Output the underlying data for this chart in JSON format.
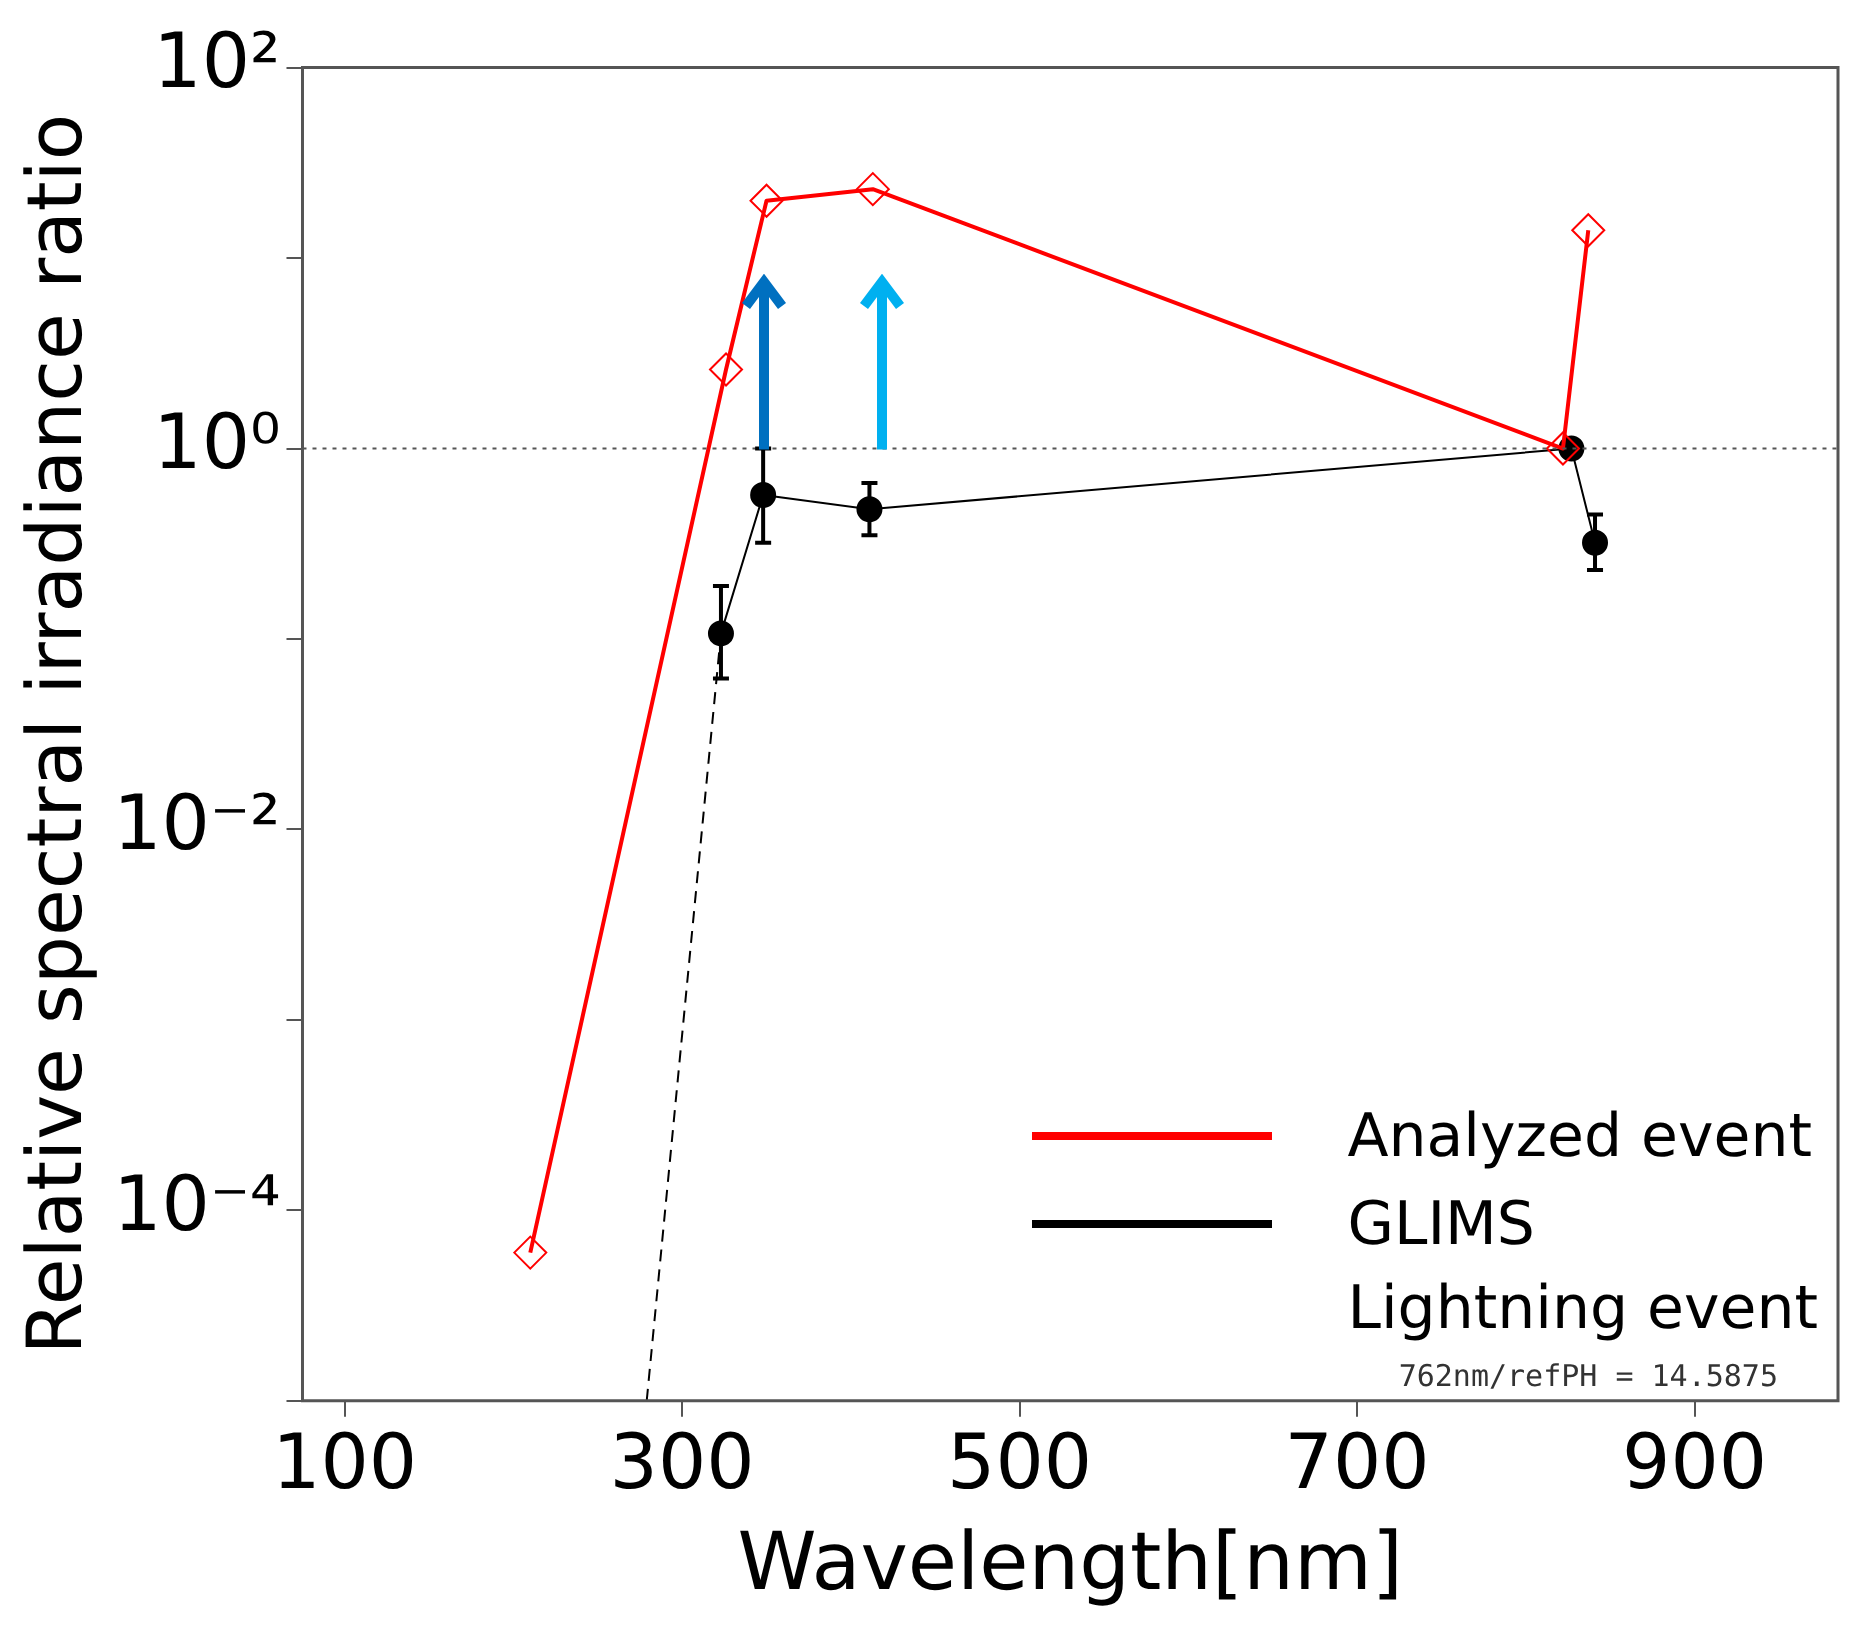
{
  "chart_data": {
    "type": "line",
    "xlabel": "Wavelength[nm]",
    "ylabel": "Relative spectral irradiance ratio",
    "log": "y",
    "xlim": [
      75,
      985
    ],
    "xticks": [
      100,
      300,
      500,
      700,
      900
    ],
    "ylim": [
      1e-05,
      100
    ],
    "yticks": [
      {
        "value": 1e-05,
        "label": null
      },
      {
        "value": 0.0001,
        "label": "10⁻⁴"
      },
      {
        "value": 0.001,
        "label": null
      },
      {
        "value": 0.01,
        "label": "10⁻²"
      },
      {
        "value": 0.1,
        "label": null
      },
      {
        "value": 1,
        "label": "10⁰"
      },
      {
        "value": 10,
        "label": null
      },
      {
        "value": 100,
        "label": "10²"
      }
    ],
    "grid": false,
    "legend": "bottom right",
    "series": [
      {
        "name": "Analyzed event",
        "color": "#ff0000",
        "marker": "diamond",
        "x": [
          210,
          326,
          350,
          413,
          822,
          837
        ],
        "values": [
          6e-05,
          2.6,
          20,
          23,
          1.0,
          14
        ]
      },
      {
        "name": "GLIMS\nLightning event",
        "color": "#000000",
        "marker": "circle",
        "x": [
          323,
          348,
          411,
          827,
          841
        ],
        "values": [
          0.107,
          0.57,
          0.48,
          1.0,
          0.32
        ],
        "errors": [
          [
            0.062,
            0.19
          ],
          [
            0.32,
            1.0
          ],
          [
            0.35,
            0.66
          ],
          null,
          [
            0.23,
            0.45
          ]
        ]
      },
      {
        "color": "#000000",
        "marker": "none",
        "line_style": "dashed",
        "x": [
          279,
          323
        ],
        "values": [
          1e-05,
          0.107
        ]
      }
    ],
    "ref_lines": [
      {
        "axis": "y",
        "value": 1,
        "line_style": "dotted",
        "color": "#555555"
      }
    ],
    "annotations": [
      "762nm/refPH = 14.5875"
    ]
  }
}
